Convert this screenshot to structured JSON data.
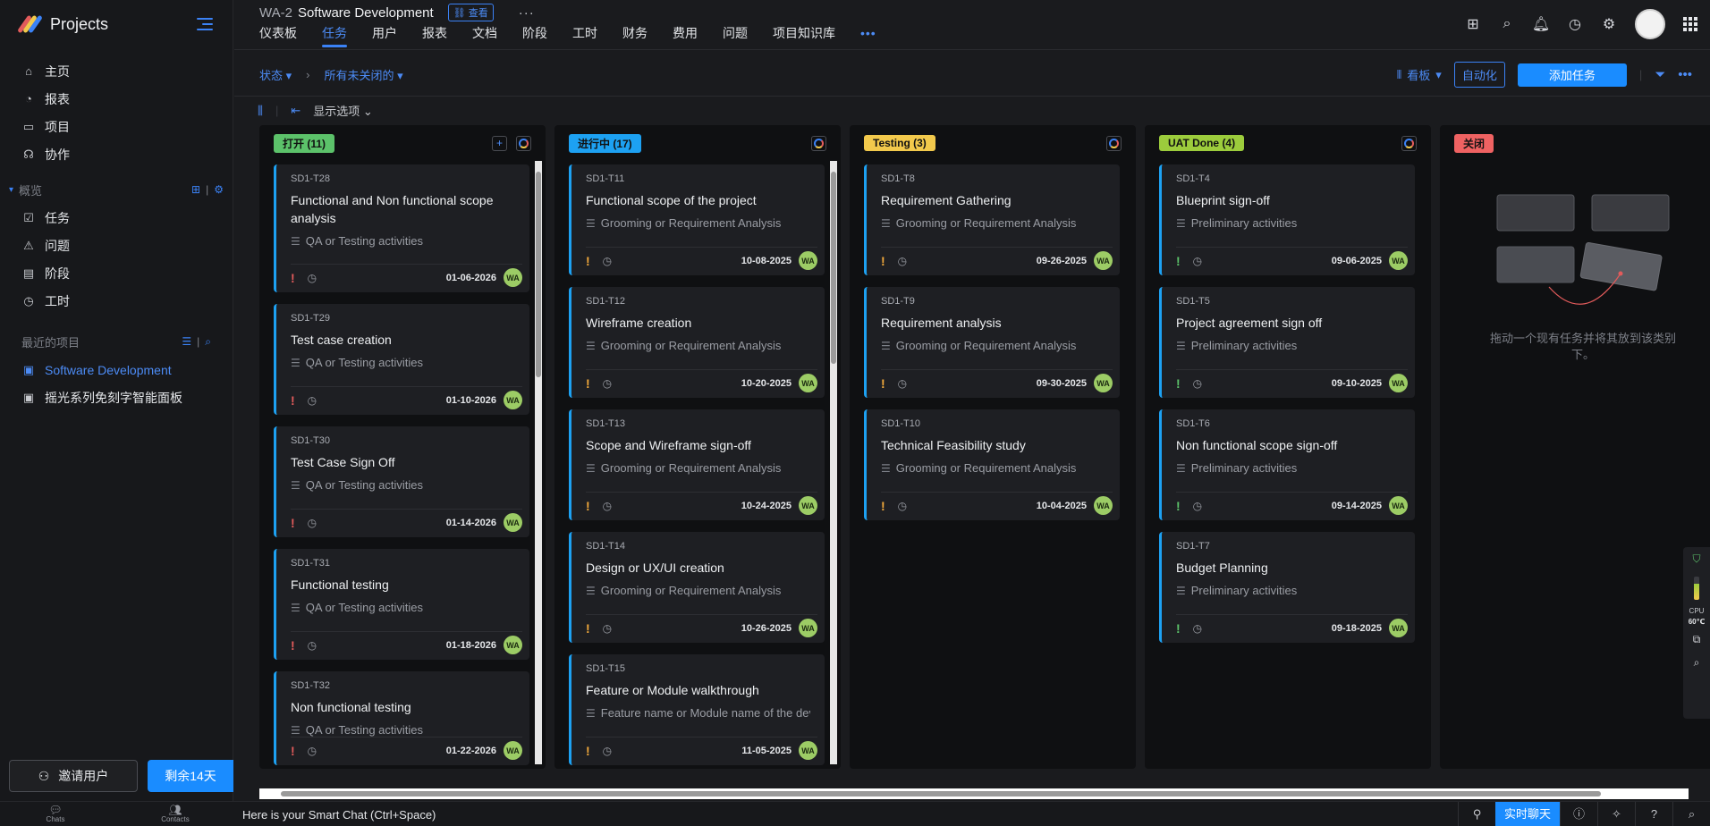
{
  "app": {
    "title": "Projects"
  },
  "sidebar": {
    "items": [
      {
        "label": "主页",
        "icon": "home-icon"
      },
      {
        "label": "报表",
        "icon": "chart-icon"
      },
      {
        "label": "项目",
        "icon": "folder-icon"
      },
      {
        "label": "协作",
        "icon": "collab-icon"
      }
    ],
    "overview_label": "概览",
    "overview_items": [
      {
        "label": "任务",
        "icon": "task-icon"
      },
      {
        "label": "问题",
        "icon": "issue-icon"
      },
      {
        "label": "阶段",
        "icon": "phase-icon"
      },
      {
        "label": "工时",
        "icon": "timesheet-icon"
      }
    ],
    "recent_label": "最近的项目",
    "recent_items": [
      {
        "label": "Software Development"
      },
      {
        "label": "摇光系列免刻字智能面板"
      }
    ],
    "invite_label": "邀请用户",
    "trial_label": "剩余14天"
  },
  "header": {
    "project_id": "WA-2",
    "project_name": "Software Development",
    "view_tag": "查看",
    "more": "···",
    "tabs": [
      "仪表板",
      "任务",
      "用户",
      "报表",
      "文档",
      "阶段",
      "工时",
      "财务",
      "费用",
      "问题",
      "项目知识库"
    ],
    "tabs_more": "•••"
  },
  "filterbar": {
    "status_label": "状态",
    "filter_label": "所有未关闭的",
    "kanban_label": "看板",
    "automation_label": "自动化",
    "add_task_label": "添加任务"
  },
  "toolbar": {
    "display_options": "显示选项"
  },
  "columns": [
    {
      "label": "打开 (11)",
      "color": "#5cc26a",
      "cards": [
        {
          "id": "SD1-T28",
          "title": "Functional and Non functional scope analysis",
          "phase": "QA or Testing activities",
          "prio_color": "#e25b5b",
          "due": "01-06-2026"
        },
        {
          "id": "SD1-T29",
          "title": "Test case creation",
          "phase": "QA or Testing activities",
          "prio_color": "#e25b5b",
          "due": "01-10-2026"
        },
        {
          "id": "SD1-T30",
          "title": "Test Case Sign Off",
          "phase": "QA or Testing activities",
          "prio_color": "#e25b5b",
          "due": "01-14-2026"
        },
        {
          "id": "SD1-T31",
          "title": "Functional testing",
          "phase": "QA or Testing activities",
          "prio_color": "#e25b5b",
          "due": "01-18-2026"
        },
        {
          "id": "SD1-T32",
          "title": "Non functional testing",
          "phase": "QA or Testing activities",
          "prio_color": "#e25b5b",
          "due": "01-22-2026"
        }
      ]
    },
    {
      "label": "进行中 (17)",
      "color": "#1da1f2",
      "cards": [
        {
          "id": "SD1-T11",
          "title": "Functional scope of the project",
          "phase": "Grooming or Requirement Analysis",
          "prio_color": "#f2a93b",
          "due": "10-08-2025"
        },
        {
          "id": "SD1-T12",
          "title": "Wireframe creation",
          "phase": "Grooming or Requirement Analysis",
          "prio_color": "#f2a93b",
          "due": "10-20-2025"
        },
        {
          "id": "SD1-T13",
          "title": "Scope and Wireframe sign-off",
          "phase": "Grooming or Requirement Analysis",
          "prio_color": "#f2a93b",
          "due": "10-24-2025"
        },
        {
          "id": "SD1-T14",
          "title": "Design or UX/UI creation",
          "phase": "Grooming or Requirement Analysis",
          "prio_color": "#f2a93b",
          "due": "10-26-2025"
        },
        {
          "id": "SD1-T15",
          "title": "Feature or Module walkthrough",
          "phase": "Feature name or Module name of the dev...",
          "prio_color": "#f2a93b",
          "due": "11-05-2025"
        }
      ]
    },
    {
      "label": "Testing (3)",
      "color": "#f2c94c",
      "cards": [
        {
          "id": "SD1-T8",
          "title": "Requirement Gathering",
          "phase": "Grooming or Requirement Analysis",
          "prio_color": "#f2a93b",
          "due": "09-26-2025"
        },
        {
          "id": "SD1-T9",
          "title": "Requirement analysis",
          "phase": "Grooming or Requirement Analysis",
          "prio_color": "#f2a93b",
          "due": "09-30-2025"
        },
        {
          "id": "SD1-T10",
          "title": "Technical Feasibility study",
          "phase": "Grooming or Requirement Analysis",
          "prio_color": "#f2a93b",
          "due": "10-04-2025"
        }
      ]
    },
    {
      "label": "UAT Done (4)",
      "color": "#9ccc3c",
      "cards": [
        {
          "id": "SD1-T4",
          "title": "Blueprint sign-off",
          "phase": "Preliminary activities",
          "prio_color": "#5cc26a",
          "due": "09-06-2025"
        },
        {
          "id": "SD1-T5",
          "title": "Project agreement sign off",
          "phase": "Preliminary activities",
          "prio_color": "#5cc26a",
          "due": "09-10-2025"
        },
        {
          "id": "SD1-T6",
          "title": "Non functional scope sign-off",
          "phase": "Preliminary activities",
          "prio_color": "#5cc26a",
          "due": "09-14-2025"
        },
        {
          "id": "SD1-T7",
          "title": "Budget Planning",
          "phase": "Preliminary activities",
          "prio_color": "#5cc26a",
          "due": "09-18-2025"
        }
      ]
    },
    {
      "label": "关闭",
      "color": "#ef6262",
      "cards": [],
      "empty_text": "拖动一个现有任务并将其放到该类别下。"
    }
  ],
  "assignee_initials": "WA",
  "bottombar": {
    "chats": "Chats",
    "contacts": "Contacts",
    "smart_chat": "Here is your Smart Chat (Ctrl+Space)",
    "live_chat": "实时聊天"
  },
  "widget": {
    "cpu_label": "CPU",
    "cpu_temp": "60℃"
  }
}
